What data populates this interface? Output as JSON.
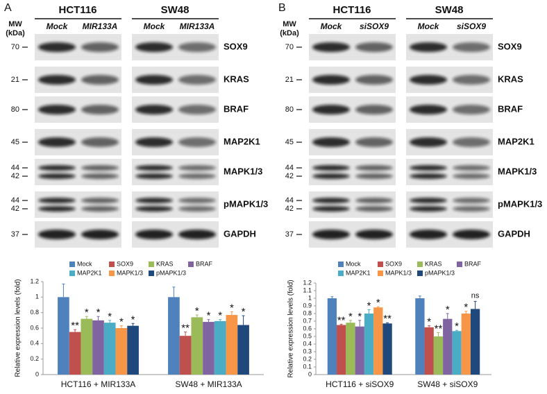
{
  "panels": [
    {
      "label": "A",
      "mw_header": [
        "MW",
        "(kDa)"
      ],
      "groups": [
        {
          "cell_line": "HCT116",
          "conditions": [
            "Mock",
            "MIR133A"
          ]
        },
        {
          "cell_line": "SW48",
          "conditions": [
            "Mock",
            "MIR133A"
          ]
        }
      ],
      "rows": [
        {
          "protein": "SOX9",
          "mw": [
            70
          ]
        },
        {
          "protein": "KRAS",
          "mw": [
            21
          ]
        },
        {
          "protein": "BRAF",
          "mw": [
            80
          ]
        },
        {
          "protein": "MAP2K1",
          "mw": [
            45
          ]
        },
        {
          "protein": "MAPK1/3",
          "mw": [
            44,
            42
          ]
        },
        {
          "protein": "pMAPK1/3",
          "mw": [
            44,
            42
          ]
        },
        {
          "protein": "GAPDH",
          "mw": [
            37
          ]
        }
      ]
    },
    {
      "label": "B",
      "mw_header": [
        "MW",
        "(kDa)"
      ],
      "groups": [
        {
          "cell_line": "HCT116",
          "conditions": [
            "Mock",
            "siSOX9"
          ]
        },
        {
          "cell_line": "SW48",
          "conditions": [
            "Mock",
            "siSOX9"
          ]
        }
      ],
      "rows": [
        {
          "protein": "SOX9",
          "mw": [
            70
          ]
        },
        {
          "protein": "KRAS",
          "mw": [
            21
          ]
        },
        {
          "protein": "BRAF",
          "mw": [
            80
          ]
        },
        {
          "protein": "MAP2K1",
          "mw": [
            45
          ]
        },
        {
          "protein": "MAPK1/3",
          "mw": [
            44,
            42
          ]
        },
        {
          "protein": "pMAPK1/3",
          "mw": [
            44,
            42
          ]
        },
        {
          "protein": "GAPDH",
          "mw": [
            37
          ]
        }
      ]
    }
  ],
  "chart_data": [
    {
      "type": "bar",
      "ylabel": "Relative expression levels (fold)",
      "categories": [
        "HCT116 + MIR133A",
        "SW48 + MIR133A"
      ],
      "ylim": [
        0,
        1.2
      ],
      "yticks": [
        0,
        0.2,
        0.4,
        0.6,
        0.8,
        1,
        1.2
      ],
      "series": [
        {
          "name": "Mock",
          "color": "#4f81bd",
          "values": [
            1.0,
            1.0
          ],
          "errors": [
            0.17,
            0.13
          ],
          "significance": [
            null,
            null
          ]
        },
        {
          "name": "SOX9",
          "color": "#c0504d",
          "values": [
            0.55,
            0.5
          ],
          "errors": [
            0.03,
            0.05
          ],
          "significance": [
            "**",
            "**"
          ]
        },
        {
          "name": "KRAS",
          "color": "#9bbb59",
          "values": [
            0.72,
            0.74
          ],
          "errors": [
            0.03,
            0.03
          ],
          "significance": [
            "*",
            "*"
          ]
        },
        {
          "name": "BRAF",
          "color": "#8064a2",
          "values": [
            0.7,
            0.68
          ],
          "errors": [
            0.05,
            0.03
          ],
          "significance": [
            "*",
            "*"
          ]
        },
        {
          "name": "MAP2K1",
          "color": "#4bacc6",
          "values": [
            0.67,
            0.69
          ],
          "errors": [
            0.03,
            0.02
          ],
          "significance": [
            "*",
            "*"
          ]
        },
        {
          "name": "MAPK1/3",
          "color": "#f79646",
          "values": [
            0.6,
            0.77
          ],
          "errors": [
            0.03,
            0.04
          ],
          "significance": [
            "*",
            "*"
          ]
        },
        {
          "name": "pMAPK1/3",
          "color": "#1f497d",
          "values": [
            0.63,
            0.64
          ],
          "errors": [
            0.03,
            0.12
          ],
          "significance": [
            "*",
            "*"
          ]
        }
      ]
    },
    {
      "type": "bar",
      "ylabel": "Relative expression levels (fold)",
      "categories": [
        "HCT116 + siSOX9",
        "SW48 + siSOX9"
      ],
      "ylim": [
        0,
        1.2
      ],
      "yticks": [
        0,
        0.1,
        0.2,
        0.3,
        0.4,
        0.5,
        0.6,
        0.7,
        0.8,
        0.9,
        1,
        1.1,
        1.2
      ],
      "series": [
        {
          "name": "Mock",
          "color": "#4f81bd",
          "values": [
            1.0,
            1.0
          ],
          "errors": [
            0.02,
            0.03
          ],
          "significance": [
            null,
            null
          ]
        },
        {
          "name": "SOX9",
          "color": "#c0504d",
          "values": [
            0.65,
            0.62
          ],
          "errors": [
            0.01,
            0.02
          ],
          "significance": [
            "**",
            "*"
          ]
        },
        {
          "name": "KRAS",
          "color": "#9bbb59",
          "values": [
            0.68,
            0.5
          ],
          "errors": [
            0.03,
            0.05
          ],
          "significance": [
            "*",
            "**"
          ]
        },
        {
          "name": "BRAF",
          "color": "#8064a2",
          "values": [
            0.63,
            0.73
          ],
          "errors": [
            0.08,
            0.07
          ],
          "significance": [
            "*",
            "*"
          ]
        },
        {
          "name": "MAP2K1",
          "color": "#4bacc6",
          "values": [
            0.8,
            0.57
          ],
          "errors": [
            0.05,
            0.01
          ],
          "significance": [
            "*",
            "*"
          ]
        },
        {
          "name": "MAPK1/3",
          "color": "#f79646",
          "values": [
            0.88,
            0.8
          ],
          "errors": [
            0.01,
            0.03
          ],
          "significance": [
            "*",
            "*"
          ]
        },
        {
          "name": "pMAPK1/3",
          "color": "#1f497d",
          "values": [
            0.67,
            0.86
          ],
          "errors": [
            0.01,
            0.1
          ],
          "significance": [
            "**",
            "ns"
          ]
        }
      ]
    }
  ]
}
